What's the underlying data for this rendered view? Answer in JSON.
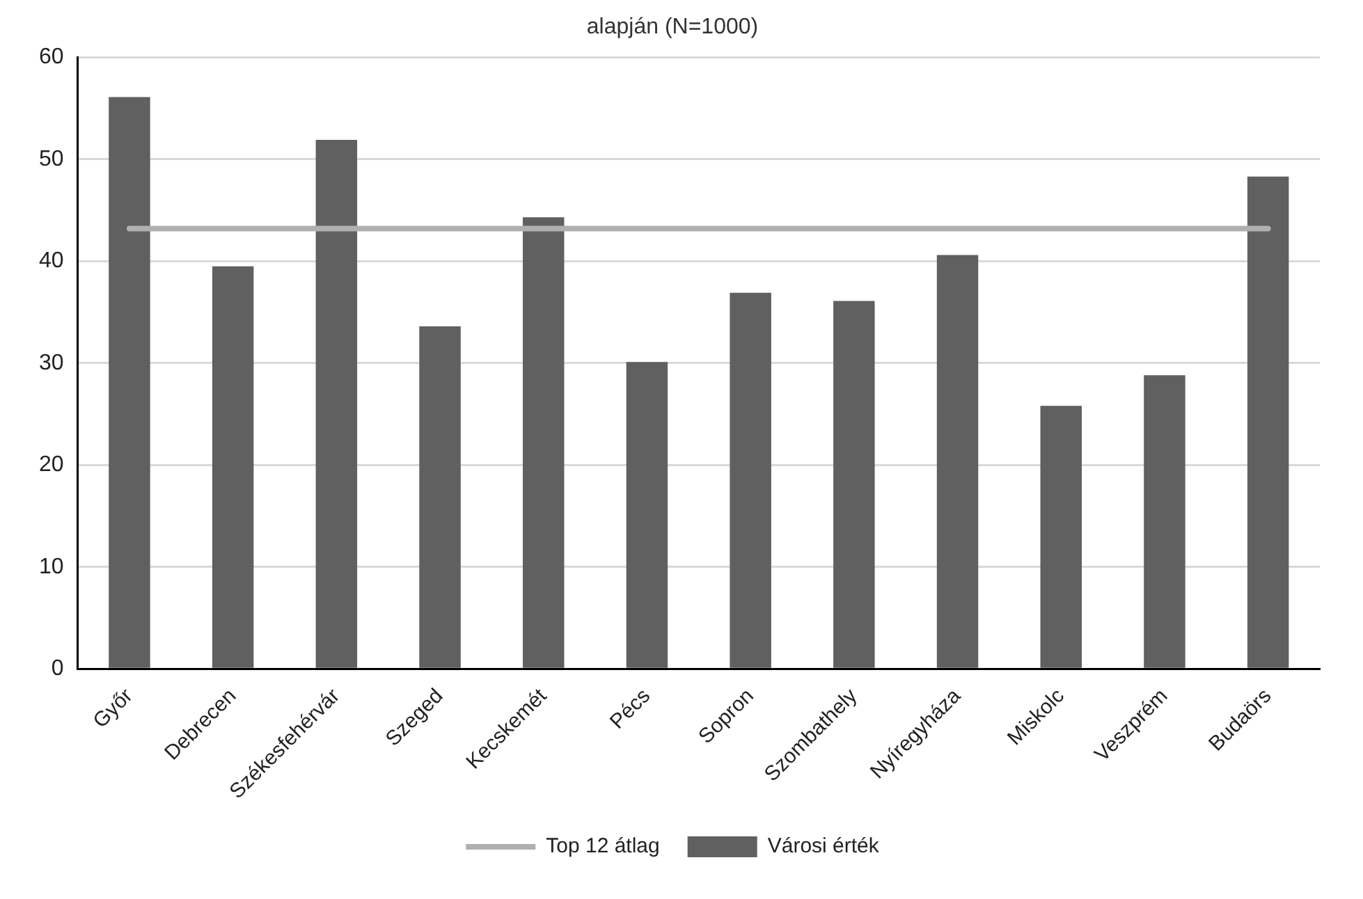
{
  "chart_data": {
    "type": "bar",
    "title": "alapján (N=1000)",
    "categories": [
      "Győr",
      "Debrecen",
      "Székesfehérvár",
      "Szeged",
      "Kecskemét",
      "Pécs",
      "Sopron",
      "Szombathely",
      "Nyíregyháza",
      "Miskolc",
      "Veszprém",
      "Budaörs"
    ],
    "series": [
      {
        "name": "Városi érték",
        "color": "#606060",
        "values": [
          56.1,
          39.5,
          51.9,
          33.6,
          44.3,
          30.1,
          36.9,
          36.1,
          40.6,
          25.8,
          28.8,
          48.3
        ]
      },
      {
        "name": "Top 12 átlag",
        "type": "line",
        "color": "#b0b0b0",
        "values": [
          43.2,
          43.2,
          43.2,
          43.2,
          43.2,
          43.2,
          43.2,
          43.2,
          43.2,
          43.2,
          43.2,
          43.2
        ]
      }
    ],
    "ylim": [
      0,
      60
    ],
    "yticks": [
      0,
      10,
      20,
      30,
      40,
      50,
      60
    ],
    "grid": "y",
    "legend": "bottom",
    "marker": "none"
  }
}
